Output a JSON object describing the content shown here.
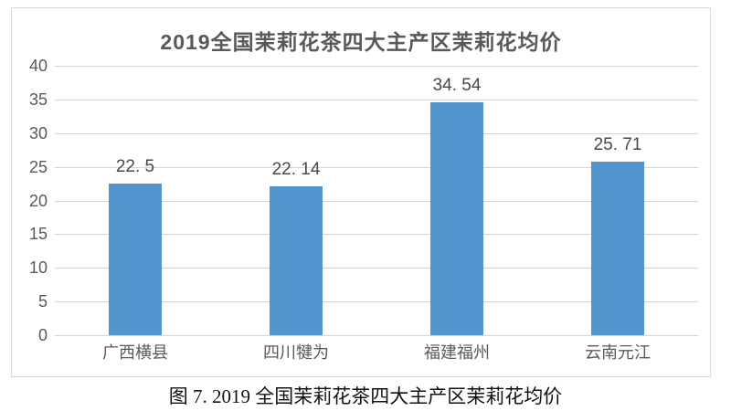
{
  "figure": {
    "caption": "图 7. 2019 全国茉莉花茶四大主产区茉莉花均价"
  },
  "chart_data": {
    "type": "bar",
    "title": "2019全国茉莉花茶四大主产区茉莉花均价",
    "categories": [
      "广西横县",
      "四川犍为",
      "福建福州",
      "云南元江"
    ],
    "values": [
      22.5,
      22.14,
      34.54,
      25.71
    ],
    "value_labels": [
      "22. 5",
      "22. 14",
      "34. 54",
      "25. 71"
    ],
    "xlabel": "",
    "ylabel": "",
    "ylim": [
      0,
      40
    ],
    "yticks": [
      0,
      5,
      10,
      15,
      20,
      25,
      30,
      35,
      40
    ],
    "grid": true,
    "legend_position": "none",
    "colors": {
      "bar": "#5294CE",
      "gridline": "#D6D6D6",
      "tick_label": "#595959",
      "category_label": "#595959",
      "value_label": "#484848",
      "title": "#595959",
      "frame_border": "#D9D9D9",
      "background": "#FFFFFF"
    }
  }
}
